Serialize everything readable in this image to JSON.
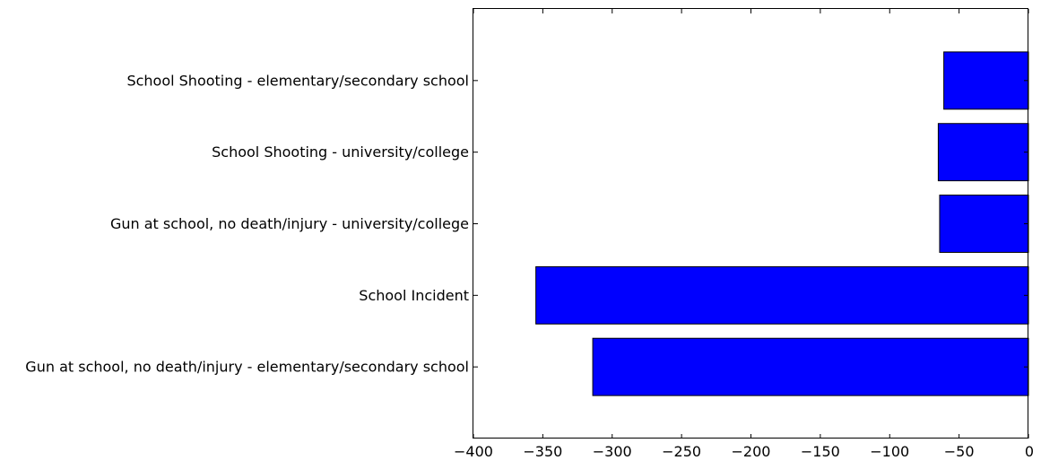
{
  "chart_data": {
    "type": "bar",
    "orientation": "horizontal",
    "categories": [
      "School Shooting - elementary/secondary school",
      "School Shooting - university/college",
      "Gun at school, no death/injury - university/college",
      "School Incident",
      "Gun at school, no death/injury - elementary/secondary school"
    ],
    "values": [
      -61,
      -65,
      -64,
      -355,
      -314
    ],
    "xlim": [
      -400,
      0
    ],
    "xticks": [
      -400,
      -350,
      -300,
      -250,
      -200,
      -150,
      -100,
      -50,
      0
    ],
    "xtick_labels": [
      "−400",
      "−350",
      "−300",
      "−250",
      "−200",
      "−150",
      "−100",
      "−50",
      "0"
    ],
    "bar_color": "#0000ff",
    "grid": false,
    "legend": "none"
  }
}
